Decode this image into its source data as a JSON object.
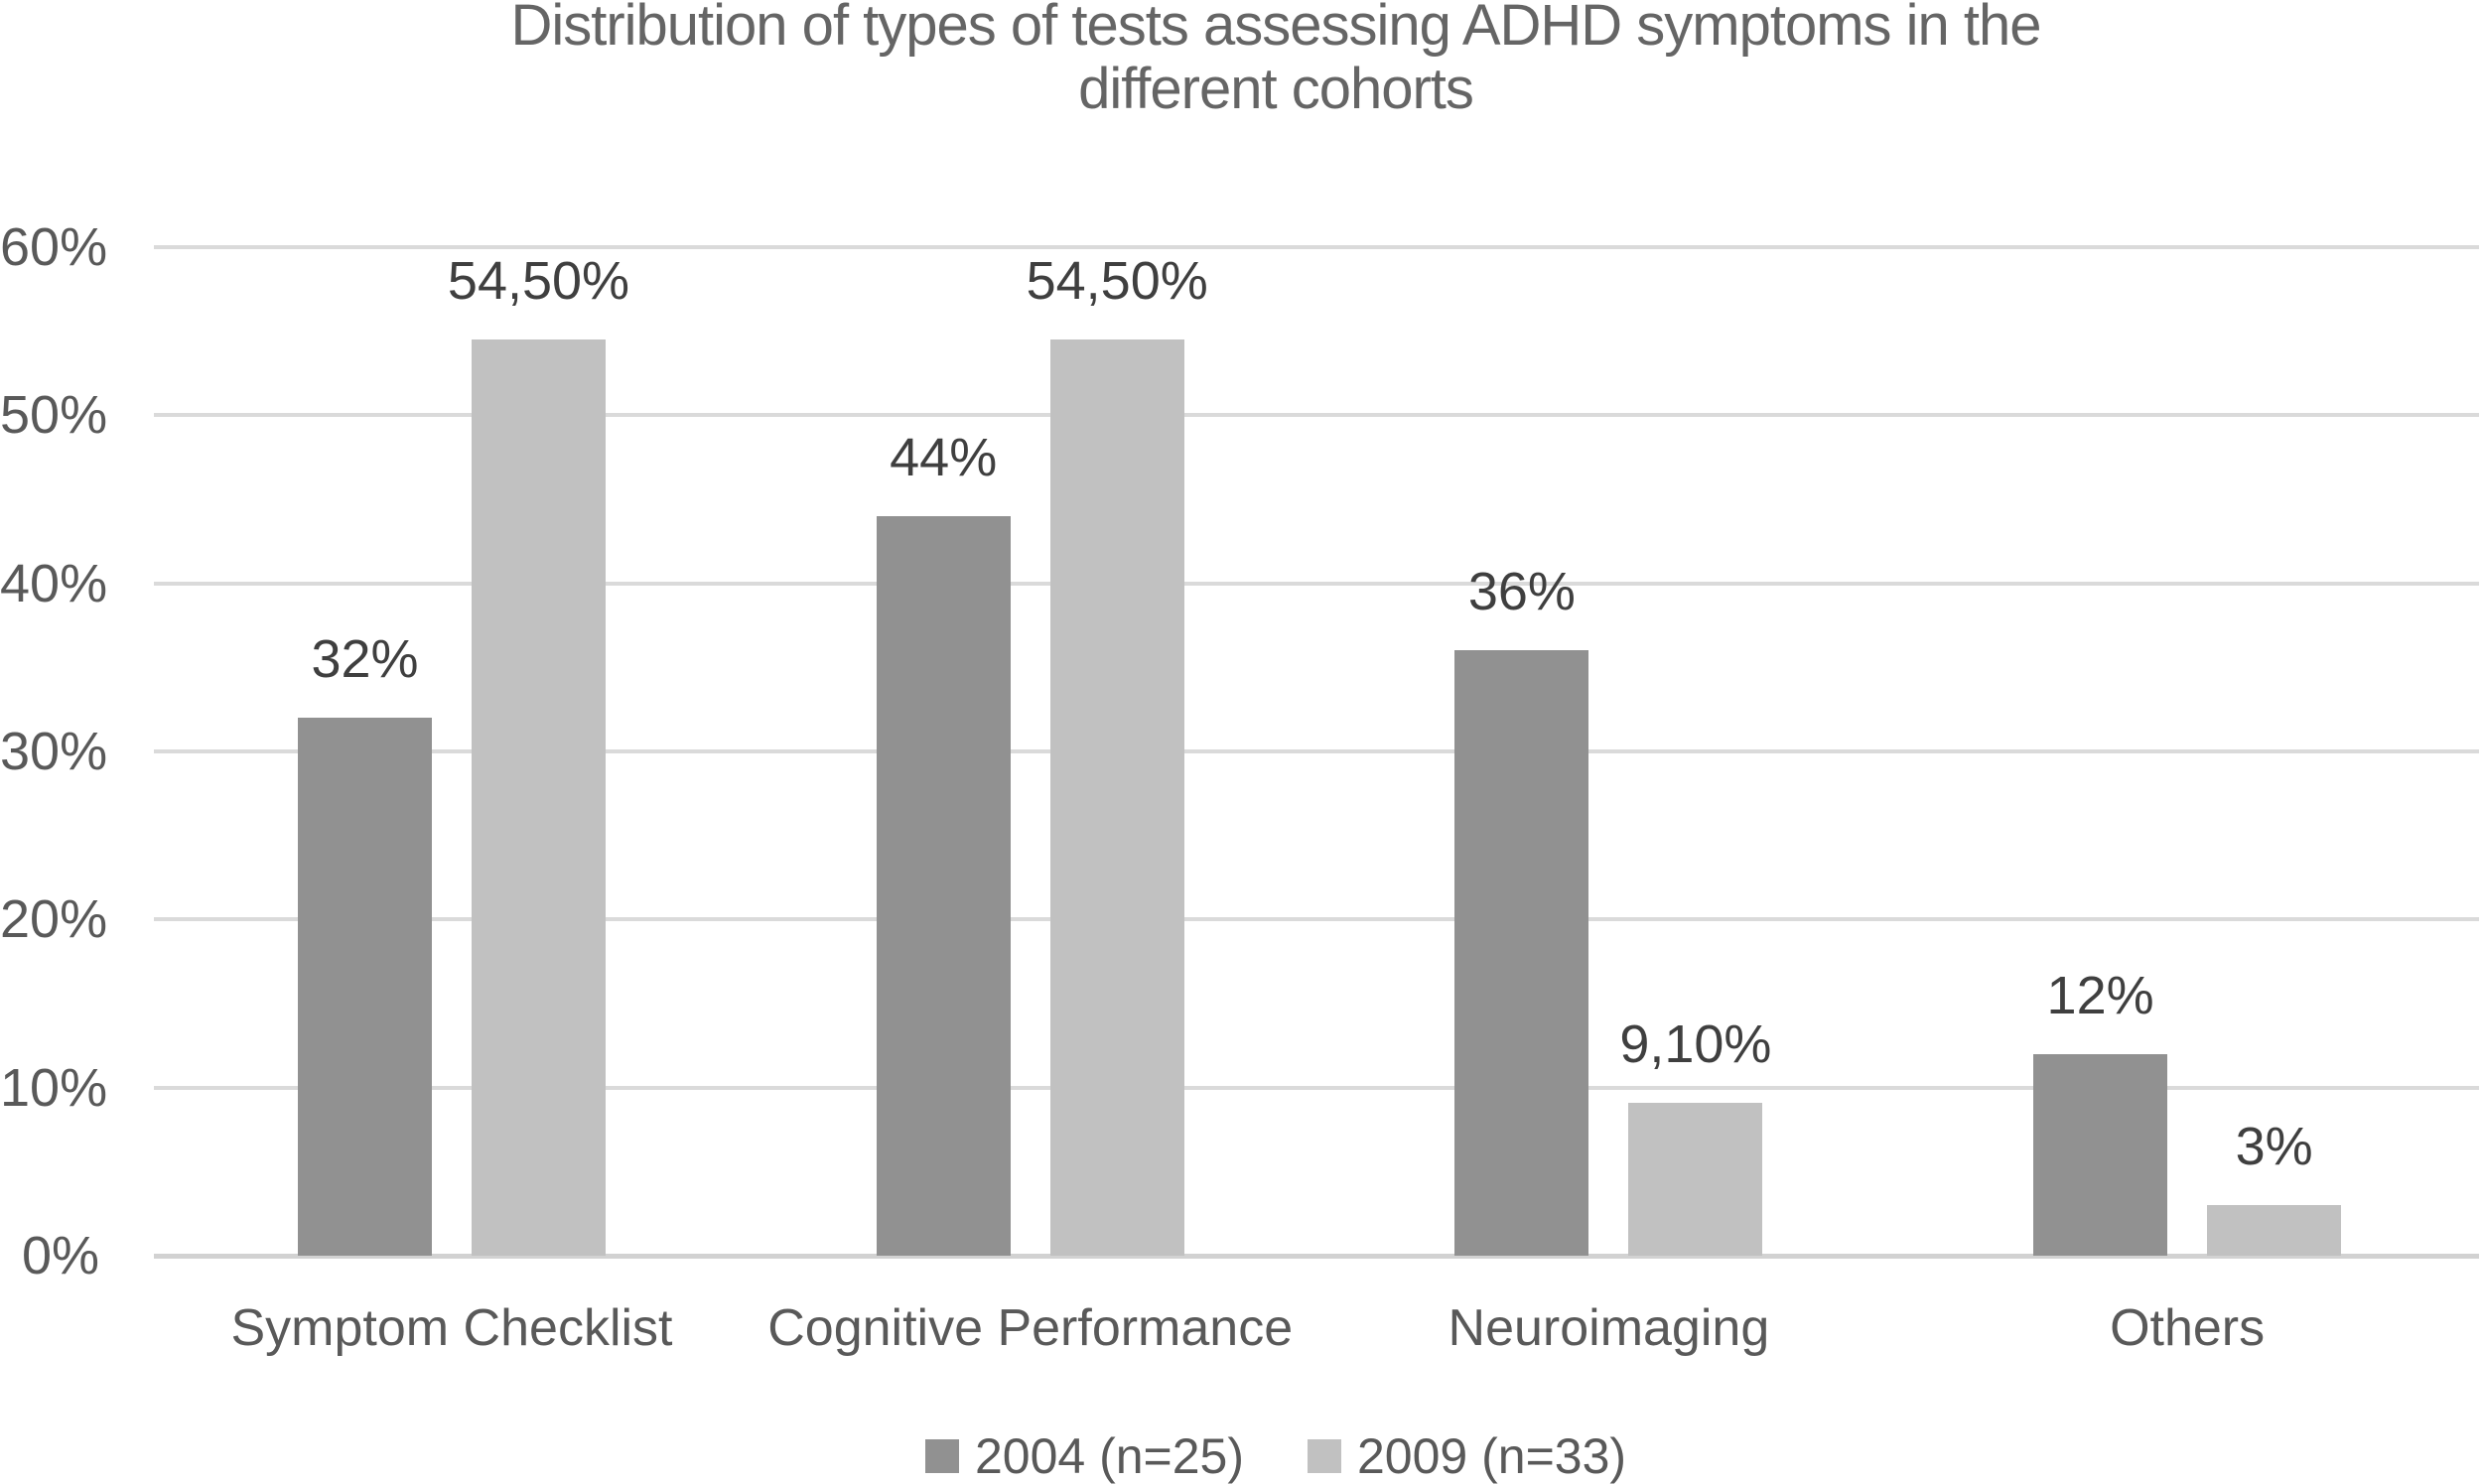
{
  "title": {
    "line1": "Distribution of types of tests assessing ADHD symptoms in the",
    "line2": "different cohorts"
  },
  "colors": {
    "background": "#ffffff",
    "series_2004": "#919191",
    "series_2009": "#c1c1c1",
    "gridline": "#dadada",
    "axis_line": "#d2d2d2",
    "axis_text": "#595959",
    "data_label_text": "#3f3f3f",
    "title_text": "#656565"
  },
  "chart_data": {
    "type": "bar",
    "title": "Distribution of types of tests assessing ADHD symptoms in the different cohorts",
    "categories": [
      "Symptom Checklist",
      "Cognitive Performance",
      "Neuroimaging",
      "Others"
    ],
    "series": [
      {
        "name": "2004 (n=25)",
        "color": "#919191",
        "values": [
          32,
          44,
          36,
          12
        ],
        "labels": [
          "32%",
          "44%",
          "36%",
          "12%"
        ]
      },
      {
        "name": "2009 (n=33)",
        "color": "#c1c1c1",
        "values": [
          54.5,
          54.5,
          9.1,
          3
        ],
        "labels": [
          "54,50%",
          "54,50%",
          "9,10%",
          "3%"
        ]
      }
    ],
    "xlabel": "",
    "ylabel": "",
    "ylim": [
      0,
      60
    ],
    "yticks": [
      {
        "value": 0,
        "label": "0%"
      },
      {
        "value": 10,
        "label": "10%"
      },
      {
        "value": 20,
        "label": "20%"
      },
      {
        "value": 30,
        "label": "30%"
      },
      {
        "value": 40,
        "label": "40%"
      },
      {
        "value": 50,
        "label": "50%"
      },
      {
        "value": 60,
        "label": "60%"
      }
    ],
    "grid": true,
    "legend_position": "bottom"
  }
}
